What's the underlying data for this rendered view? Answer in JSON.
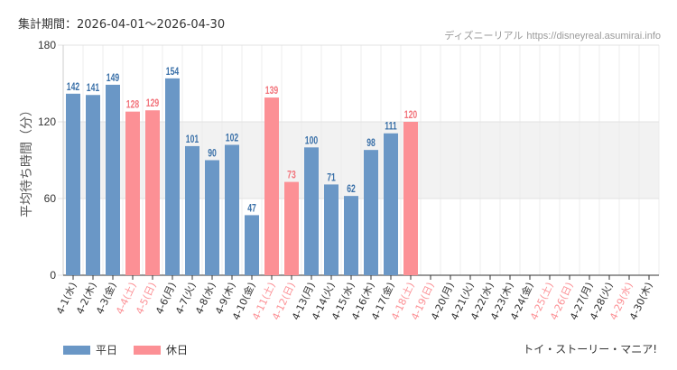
{
  "header": {
    "period_label": "集計期間：2026-04-01～2026-04-30",
    "site_name": "ディズニーリアル",
    "site_url": "https://disneyreal.asumirai.info"
  },
  "footer": {
    "attraction": "トイ・ストーリー・マニア!"
  },
  "colors": {
    "weekday": "#6a97c6",
    "holiday": "#fc9095",
    "weekday_label": "#3a70a8",
    "holiday_label": "#f2737b",
    "band": "#f2f2f2"
  },
  "chart_data": {
    "type": "bar",
    "ylabel": "平均待ち時間（分）",
    "ylim": [
      0,
      180
    ],
    "yticks": [
      0,
      60,
      120,
      180
    ],
    "shaded_band": [
      60,
      120
    ],
    "legend": [
      {
        "label": "平日",
        "kind": "weekday"
      },
      {
        "label": "休日",
        "kind": "holiday"
      }
    ],
    "categories": [
      "4-1(水)",
      "4-2(木)",
      "4-3(金)",
      "4-4(土)",
      "4-5(日)",
      "4-6(月)",
      "4-7(火)",
      "4-8(水)",
      "4-9(木)",
      "4-10(金)",
      "4-11(土)",
      "4-12(日)",
      "4-13(月)",
      "4-14(火)",
      "4-15(水)",
      "4-16(木)",
      "4-17(金)",
      "4-18(土)",
      "4-19(日)",
      "4-20(月)",
      "4-21(火)",
      "4-22(水)",
      "4-23(木)",
      "4-24(金)",
      "4-25(土)",
      "4-26(日)",
      "4-27(月)",
      "4-28(火)",
      "4-29(水)",
      "4-30(木)"
    ],
    "holiday": [
      false,
      false,
      false,
      true,
      true,
      false,
      false,
      false,
      false,
      false,
      true,
      true,
      false,
      false,
      false,
      false,
      false,
      true,
      true,
      false,
      false,
      false,
      false,
      false,
      true,
      true,
      false,
      false,
      true,
      false
    ],
    "values": [
      142,
      141,
      149,
      128,
      129,
      154,
      101,
      90,
      102,
      47,
      139,
      73,
      100,
      71,
      62,
      98,
      111,
      120,
      null,
      null,
      null,
      null,
      null,
      null,
      null,
      null,
      null,
      null,
      null,
      null
    ]
  }
}
